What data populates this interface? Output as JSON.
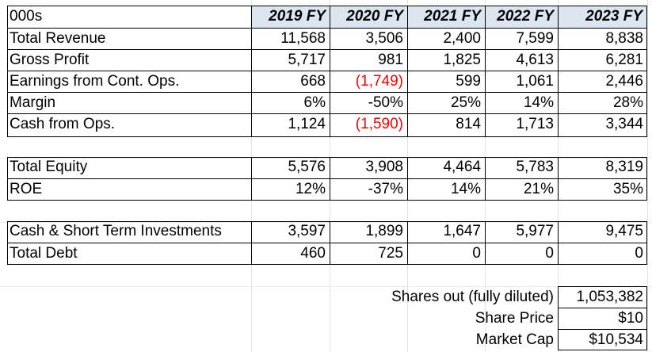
{
  "header": {
    "corner": "000s",
    "years": [
      "2019 FY",
      "2020 FY",
      "2021 FY",
      "2022 FY",
      "2023 FY"
    ]
  },
  "income": [
    {
      "label": "Total Revenue",
      "values": [
        "11,568",
        "3,506",
        "2,400",
        "7,599",
        "8,838"
      ]
    },
    {
      "label": "Gross Profit",
      "values": [
        "5,717",
        "981",
        "1,825",
        "4,613",
        "6,281"
      ]
    },
    {
      "label": "Earnings from Cont. Ops.",
      "values": [
        "668",
        "(1,749)",
        "599",
        "1,061",
        "2,446"
      ]
    },
    {
      "label": "Margin",
      "values": [
        "6%",
        "-50%",
        "25%",
        "14%",
        "28%"
      ]
    },
    {
      "label": "Cash from Ops.",
      "values": [
        "1,124",
        "(1,590)",
        "814",
        "1,713",
        "3,344"
      ]
    }
  ],
  "equity": [
    {
      "label": "Total Equity",
      "values": [
        "5,576",
        "3,908",
        "4,464",
        "5,783",
        "8,319"
      ]
    },
    {
      "label": "ROE",
      "values": [
        "12%",
        "-37%",
        "14%",
        "21%",
        "35%"
      ]
    }
  ],
  "balance": [
    {
      "label": "Cash & Short Term Investments",
      "values": [
        "3,597",
        "1,899",
        "1,647",
        "5,977",
        "9,475"
      ]
    },
    {
      "label": "Total Debt",
      "values": [
        "460",
        "725",
        "0",
        "0",
        "0"
      ]
    }
  ],
  "market": {
    "shares_label": "Shares out (fully diluted)",
    "shares_value": "1,053,382",
    "price_label": "Share Price",
    "price_value": "$10",
    "cap_label": "Market Cap",
    "cap_value": "$10,534"
  },
  "colors": {
    "header_fill": "#dce6f1",
    "negative": "#ff0000"
  }
}
